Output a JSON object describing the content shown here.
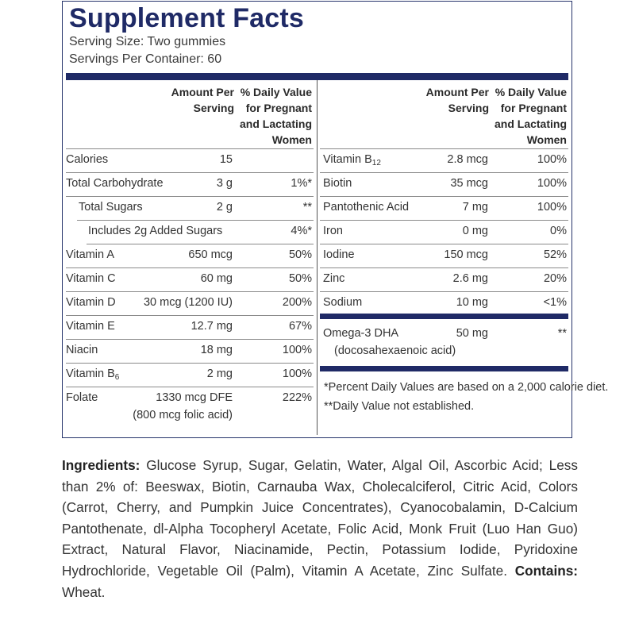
{
  "title": "Supplement Facts",
  "serving_size": "Serving Size: Two gummies",
  "servings_per_container": "Servings Per Container: 60",
  "header": {
    "amount": [
      "Amount Per",
      "Serving"
    ],
    "dv": [
      "% Daily Value",
      "for Pregnant",
      "and Lactating",
      "Women"
    ]
  },
  "left_rows": [
    {
      "name": "Calories",
      "amount": "15",
      "dv": ""
    },
    {
      "name": "Total Carbohydrate",
      "amount": "3 g",
      "dv": "1%*"
    },
    {
      "name": "Total Sugars",
      "amount": "2 g",
      "dv": "**"
    },
    {
      "name": "Includes 2g Added Sugars",
      "amount": "",
      "dv": "4%*"
    },
    {
      "name": "Vitamin A",
      "amount": "650 mcg",
      "dv": "50%"
    },
    {
      "name": "Vitamin C",
      "amount": "60 mg",
      "dv": "50%"
    },
    {
      "name": "Vitamin D",
      "amount": "30 mcg (1200 IU)",
      "dv": "200%"
    },
    {
      "name": "Vitamin E",
      "amount": "12.7 mg",
      "dv": "67%"
    },
    {
      "name": "Niacin",
      "amount": "18 mg",
      "dv": "100%"
    },
    {
      "name": "Vitamin B",
      "sub": "6",
      "amount": "2 mg",
      "dv": "100%"
    },
    {
      "name": "Folate",
      "amount": "1330 mcg DFE",
      "amount2": "(800 mcg folic acid)",
      "dv": "222%"
    }
  ],
  "right_rows": [
    {
      "name": "Vitamin B",
      "sub": "12",
      "amount": "2.8 mcg",
      "dv": "100%"
    },
    {
      "name": "Biotin",
      "amount": "35 mcg",
      "dv": "100%"
    },
    {
      "name": "Pantothenic Acid",
      "amount": "7 mg",
      "dv": "100%"
    },
    {
      "name": "Iron",
      "amount": "0 mg",
      "dv": "0%"
    },
    {
      "name": "Iodine",
      "amount": "150 mcg",
      "dv": "52%"
    },
    {
      "name": "Zinc",
      "amount": "2.6 mg",
      "dv": "20%"
    },
    {
      "name": "Sodium",
      "amount": "10 mg",
      "dv": "<1%"
    },
    {
      "name": "Omega-3 DHA",
      "name2": "(docosahexaenoic acid)",
      "amount": "50 mg",
      "dv": "**"
    }
  ],
  "footnotes": [
    "*Percent Daily Values are based on a 2,000 calorie diet.",
    "**Daily Value not established."
  ],
  "ingredients_label": "Ingredients:",
  "ingredients_text": " Glucose Syrup, Sugar, Gelatin, Water, Algal Oil, Ascorbic Acid; Less than 2% of: Beeswax, Biotin, Carnauba Wax, Cholecalciferol, Citric Acid, Colors (Carrot, Cherry, and Pumpkin Juice Concentrates), Cyanocobalamin, D-Calcium Pantothenate, dl-Alpha Tocopheryl Acetate, Folic Acid, Monk Fruit (Luo Han Guo) Extract, Natural Flavor, Niacinamide, Pectin, Potassium Iodide, Pyridoxine Hydrochloride, Vegetable Oil (Palm), Vitamin A Acetate, Zinc Sulfate. ",
  "contains_label": "Contains:",
  "contains_text": " Wheat."
}
